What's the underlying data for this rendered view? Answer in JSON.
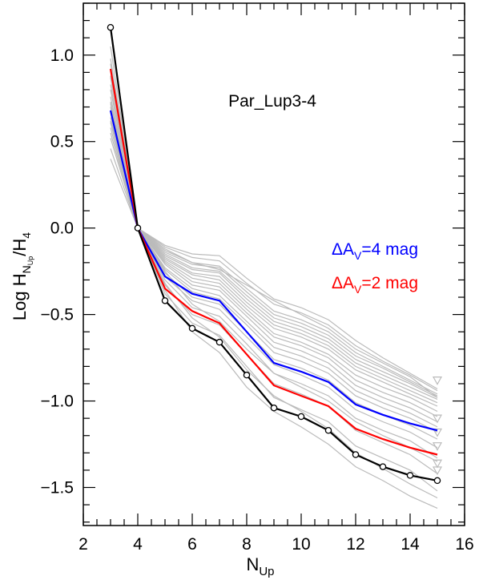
{
  "chart_data": {
    "type": "line",
    "annotation": "Par_Lup3-4",
    "xlabel": {
      "main": "N",
      "sub": "Up"
    },
    "ylabel": {
      "prefix": "Log H",
      "sub1": "N",
      "sub2": "Up",
      "mid": "/H",
      "sub3": "4"
    },
    "xlim": [
      2,
      16
    ],
    "ylim": [
      -1.72,
      1.3
    ],
    "x_ticks": [
      2,
      4,
      6,
      8,
      10,
      12,
      14,
      16
    ],
    "x_tick_labels": [
      "2",
      "4",
      "6",
      "8",
      "10",
      "12",
      "14",
      "16"
    ],
    "y_ticks": [
      1.0,
      0.5,
      0.0,
      -0.5,
      -1.0,
      -1.5
    ],
    "y_tick_labels": [
      "1.0",
      "0.5",
      "0.0",
      "−0.5",
      "−1.0",
      "−1.5"
    ],
    "legend": [
      {
        "label": "ΔA",
        "sub": "V",
        "suffix": "=4 mag",
        "color": "#0000ff"
      },
      {
        "label": "ΔA",
        "sub": "V",
        "suffix": "=2 mag",
        "color": "#ff0000"
      }
    ],
    "series": [
      {
        "color": "#000000",
        "marker": "circle",
        "x": [
          3,
          4,
          5,
          6,
          7,
          8,
          9,
          10,
          11,
          12,
          13,
          14,
          15
        ],
        "y": [
          1.16,
          0.0,
          -0.42,
          -0.58,
          -0.66,
          -0.85,
          -1.04,
          -1.09,
          -1.17,
          -1.31,
          -1.38,
          -1.43,
          -1.46
        ]
      },
      {
        "color": "#ff0000",
        "marker": "none",
        "x": [
          3,
          4,
          5,
          6,
          7,
          8,
          9,
          10,
          11,
          12,
          13,
          14,
          15
        ],
        "y": [
          0.92,
          0.0,
          -0.35,
          -0.48,
          -0.55,
          -0.73,
          -0.91,
          -0.97,
          -1.03,
          -1.16,
          -1.22,
          -1.27,
          -1.31
        ]
      },
      {
        "color": "#0000ff",
        "marker": "none",
        "x": [
          3,
          4,
          5,
          6,
          7,
          8,
          9,
          10,
          11,
          12,
          13,
          14,
          15
        ],
        "y": [
          0.68,
          0.0,
          -0.28,
          -0.38,
          -0.42,
          -0.6,
          -0.78,
          -0.83,
          -0.89,
          -1.02,
          -1.08,
          -1.13,
          -1.17
        ]
      }
    ],
    "background_series": {
      "color": "#bbbbbb",
      "x": [
        3,
        4,
        5,
        6,
        7,
        8,
        9,
        10,
        11,
        12,
        13,
        14,
        15
      ],
      "lines": [
        [
          1.18,
          0.0,
          -0.38,
          -0.55,
          -0.62,
          -0.8,
          -0.98,
          -1.05,
          -1.12,
          -1.26,
          -1.33,
          -1.4,
          -1.52
        ],
        [
          1.05,
          0.0,
          -0.33,
          -0.5,
          -0.56,
          -0.73,
          -0.9,
          -0.96,
          -1.03,
          -1.17,
          -1.24,
          -1.31,
          -1.42
        ],
        [
          0.98,
          0.0,
          -0.3,
          -0.46,
          -0.51,
          -0.67,
          -0.84,
          -0.9,
          -0.97,
          -1.1,
          -1.17,
          -1.23,
          -1.33
        ],
        [
          0.92,
          0.0,
          -0.28,
          -0.42,
          -0.47,
          -0.63,
          -0.79,
          -0.85,
          -0.92,
          -1.05,
          -1.12,
          -1.18,
          -1.27
        ],
        [
          0.87,
          0.0,
          -0.26,
          -0.4,
          -0.44,
          -0.6,
          -0.76,
          -0.81,
          -0.88,
          -1.01,
          -1.08,
          -1.14,
          -1.22
        ],
        [
          0.83,
          0.0,
          -0.24,
          -0.37,
          -0.41,
          -0.56,
          -0.72,
          -0.77,
          -0.84,
          -0.97,
          -1.04,
          -1.1,
          -1.18
        ],
        [
          0.8,
          0.0,
          -0.23,
          -0.35,
          -0.39,
          -0.54,
          -0.69,
          -0.74,
          -0.81,
          -0.94,
          -1.01,
          -1.07,
          -1.15
        ],
        [
          0.76,
          0.0,
          -0.21,
          -0.33,
          -0.36,
          -0.51,
          -0.66,
          -0.71,
          -0.78,
          -0.91,
          -0.98,
          -1.04,
          -1.12
        ],
        [
          0.73,
          0.0,
          -0.2,
          -0.31,
          -0.34,
          -0.49,
          -0.63,
          -0.68,
          -0.75,
          -0.88,
          -0.95,
          -1.01,
          -1.09
        ],
        [
          0.7,
          0.0,
          -0.19,
          -0.29,
          -0.32,
          -0.47,
          -0.61,
          -0.66,
          -0.73,
          -0.85,
          -0.92,
          -0.98,
          -1.06
        ],
        [
          0.67,
          0.0,
          -0.18,
          -0.27,
          -0.3,
          -0.45,
          -0.58,
          -0.63,
          -0.7,
          -0.82,
          -0.89,
          -0.96,
          -1.03
        ],
        [
          0.64,
          0.0,
          -0.17,
          -0.26,
          -0.28,
          -0.43,
          -0.56,
          -0.61,
          -0.68,
          -0.8,
          -0.87,
          -0.94,
          -1.01
        ],
        [
          0.61,
          0.0,
          -0.16,
          -0.24,
          -0.26,
          -0.41,
          -0.54,
          -0.59,
          -0.66,
          -0.78,
          -0.85,
          -0.92,
          -0.99
        ],
        [
          0.58,
          0.0,
          -0.15,
          -0.23,
          -0.25,
          -0.39,
          -0.52,
          -0.57,
          -0.64,
          -0.76,
          -0.83,
          -0.9,
          -0.98
        ],
        [
          0.55,
          0.0,
          -0.14,
          -0.21,
          -0.23,
          -0.37,
          -0.5,
          -0.55,
          -0.62,
          -0.74,
          -0.81,
          -0.89,
          -0.97
        ],
        [
          0.52,
          0.0,
          -0.13,
          -0.2,
          -0.22,
          -0.35,
          -0.48,
          -0.53,
          -0.6,
          -0.72,
          -0.8,
          -0.88,
          -0.96
        ],
        [
          0.46,
          0.0,
          -0.11,
          -0.17,
          -0.19,
          -0.32,
          -0.44,
          -0.49,
          -0.56,
          -0.68,
          -0.77,
          -0.85,
          -0.94
        ],
        [
          0.4,
          0.0,
          -0.1,
          -0.15,
          -0.16,
          -0.29,
          -0.41,
          -0.46,
          -0.53,
          -0.65,
          -0.75,
          -0.84,
          -0.93
        ],
        [
          0.95,
          0.0,
          -0.36,
          -0.6,
          -0.72,
          -0.92,
          -1.06,
          -1.15,
          -1.25,
          -1.38,
          -1.46,
          -1.55,
          -1.62
        ],
        [
          0.88,
          0.0,
          -0.32,
          -0.52,
          -0.63,
          -0.82,
          -0.97,
          -1.06,
          -1.16,
          -1.3,
          -1.39,
          -1.48,
          -1.56
        ],
        [
          0.72,
          0.0,
          -0.25,
          -0.44,
          -0.54,
          -0.7,
          -0.84,
          -0.92,
          -1.0,
          -1.12,
          -1.2,
          -1.27,
          -1.35
        ],
        [
          0.62,
          0.0,
          -0.12,
          -0.2,
          -0.24,
          -0.33,
          -0.42,
          -0.5,
          -0.58,
          -0.7,
          -0.78,
          -0.86,
          -0.98
        ]
      ],
      "triangle_markers": [
        {
          "x": 15,
          "y": -0.88
        },
        {
          "x": 15,
          "y": -1.1
        },
        {
          "x": 15,
          "y": -1.18
        },
        {
          "x": 15,
          "y": -1.26
        },
        {
          "x": 15,
          "y": -1.36
        },
        {
          "x": 15,
          "y": -1.4
        }
      ]
    }
  }
}
